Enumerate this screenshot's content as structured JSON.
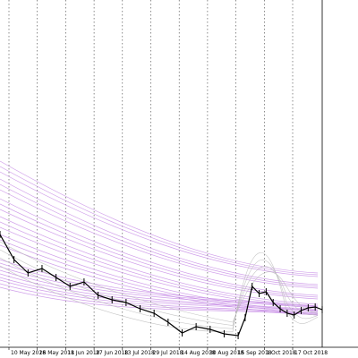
{
  "chart_data": {
    "type": "line",
    "title": "",
    "xlabel": "",
    "ylabel": "",
    "grid": true,
    "legend": "none",
    "colors": {
      "background": "#ffffff",
      "price": "#000000",
      "bands": "#c88ee6",
      "envelope": "#b8b8b8",
      "grid": "#000000",
      "axis": "#000000"
    },
    "x_tick_labels": [
      "10 May 2018",
      "26 May 2018",
      "11 Jun 2018",
      "27 Jun 2018",
      "13 Jul 2018",
      "29 Jul 2018",
      "14 Aug 2018",
      "30 Aug 2018",
      "15 Sep 2018",
      "1 Oct 2018",
      "17 Oct 2018"
    ],
    "x_range": [
      "2018-04-28",
      "2018-10-29"
    ],
    "series": [
      {
        "kind": "candles",
        "x": [
          "2018-04-28",
          "2018-05-06",
          "2018-05-14",
          "2018-05-22",
          "2018-05-30",
          "2018-06-07",
          "2018-06-15",
          "2018-06-23",
          "2018-07-01",
          "2018-07-09",
          "2018-07-17",
          "2018-07-25",
          "2018-08-02",
          "2018-08-10",
          "2018-08-18",
          "2018-08-26",
          "2018-09-03",
          "2018-09-11",
          "2018-09-15",
          "2018-09-19",
          "2018-09-23",
          "2018-09-27",
          "2018-10-01",
          "2018-10-05",
          "2018-10-09",
          "2018-10-13",
          "2018-10-17",
          "2018-10-21",
          "2018-10-25",
          "2018-10-29"
        ],
        "y": [
          262,
          290,
          305,
          300,
          310,
          320,
          315,
          330,
          335,
          338,
          345,
          350,
          360,
          372,
          365,
          368,
          373,
          375,
          355,
          320,
          328,
          326,
          338,
          345,
          350,
          352,
          347,
          344,
          343,
          346
        ]
      }
    ],
    "bands": {
      "upper_start": [
        180,
        200,
        222,
        242,
        262
      ],
      "upper_end": [
        305,
        318,
        330,
        340,
        348
      ],
      "lower_start": [
        290,
        302,
        313
      ],
      "lower_end": [
        342,
        346,
        350
      ]
    },
    "envelope": {
      "count": 4
    }
  }
}
